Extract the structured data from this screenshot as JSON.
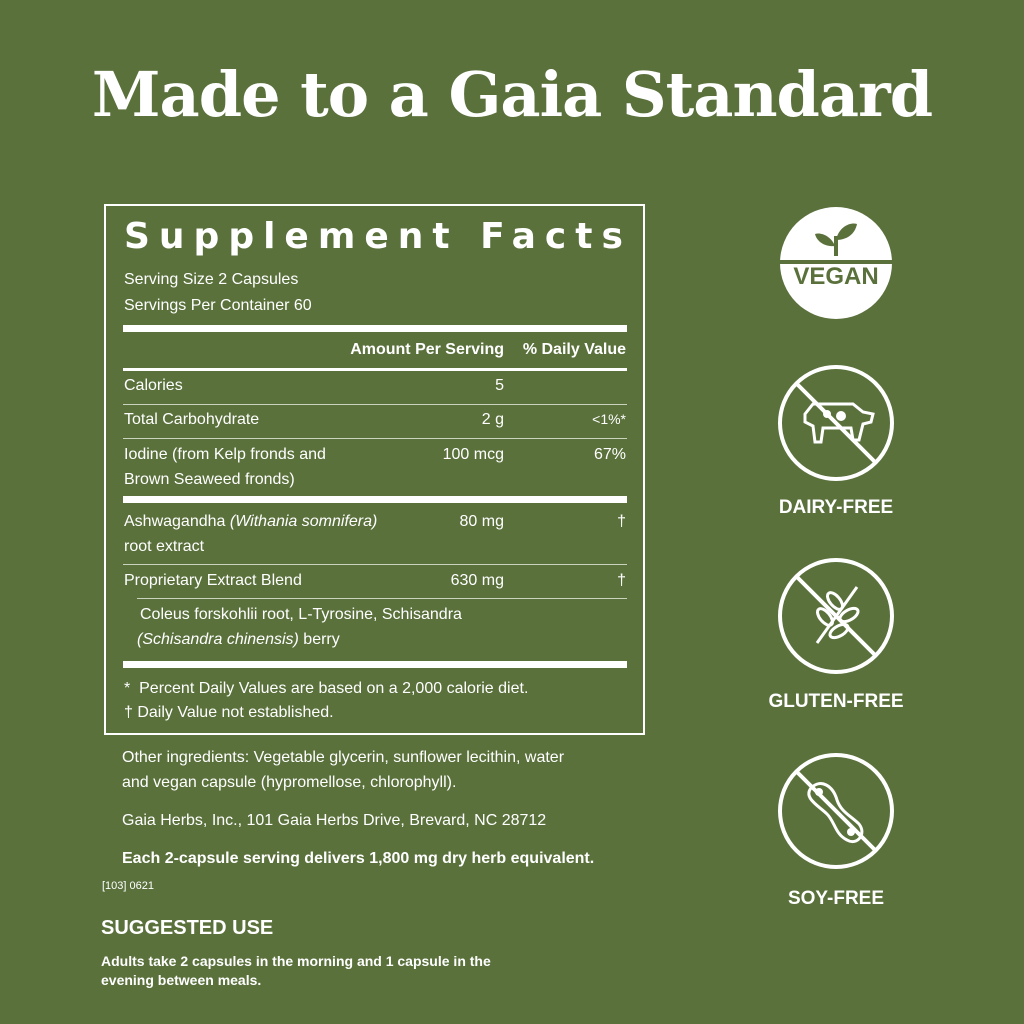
{
  "title": "Made to a Gaia Standard",
  "facts": {
    "heading": "Supplement Facts",
    "serving_size": "Serving Size 2 Capsules",
    "servings_per_container": "Servings Per Container 60",
    "col_amount": "Amount Per Serving",
    "col_dv": "% Daily Value",
    "rows": [
      {
        "name": "Calories",
        "amount": "5",
        "dv": ""
      },
      {
        "name": "Total Carbohydrate",
        "amount": "2 g",
        "dv": "<1%*"
      },
      {
        "name": "Iodine (from Kelp fronds and",
        "name2": "Brown Seaweed fronds)",
        "amount": "100 mcg",
        "dv": "67%"
      },
      {
        "name": "Ashwagandha",
        "latin": "(Withania somnifera)",
        "name2": "root extract",
        "amount": "80 mg",
        "dv": "†"
      },
      {
        "name": "Proprietary Extract Blend",
        "amount": "630 mg",
        "dv": "†"
      }
    ],
    "blend_line1": "Coleus forskohlii root, L-Tyrosine, Schisandra",
    "blend_latin": "(Schisandra chinensis)",
    "blend_rest": " berry",
    "footnote1": "*  Percent Daily Values are based on a 2,000 calorie diet.",
    "footnote2": "† Daily Value not established."
  },
  "other_ingredients_1": "Other ingredients: Vegetable glycerin, sunflower lecithin, water",
  "other_ingredients_2": "and vegan capsule (hypromellose, chlorophyll).",
  "address": "Gaia Herbs, Inc., 101 Gaia Herbs Drive, Brevard, NC 28712",
  "herb_equivalent": "Each 2-capsule serving delivers 1,800 mg dry herb equivalent.",
  "code": "[103] 0621",
  "suggested_use": {
    "heading": "SUGGESTED USE",
    "line1": "Adults take 2 capsules in the morning and 1 capsule in the",
    "line2": "evening between meals."
  },
  "badges": {
    "vegan": "VEGAN",
    "dairy_free": "DAIRY-FREE",
    "gluten_free": "GLUTEN-FREE",
    "soy_free": "SOY-FREE"
  },
  "colors": {
    "background": "#5a713c",
    "foreground": "#ffffff"
  }
}
